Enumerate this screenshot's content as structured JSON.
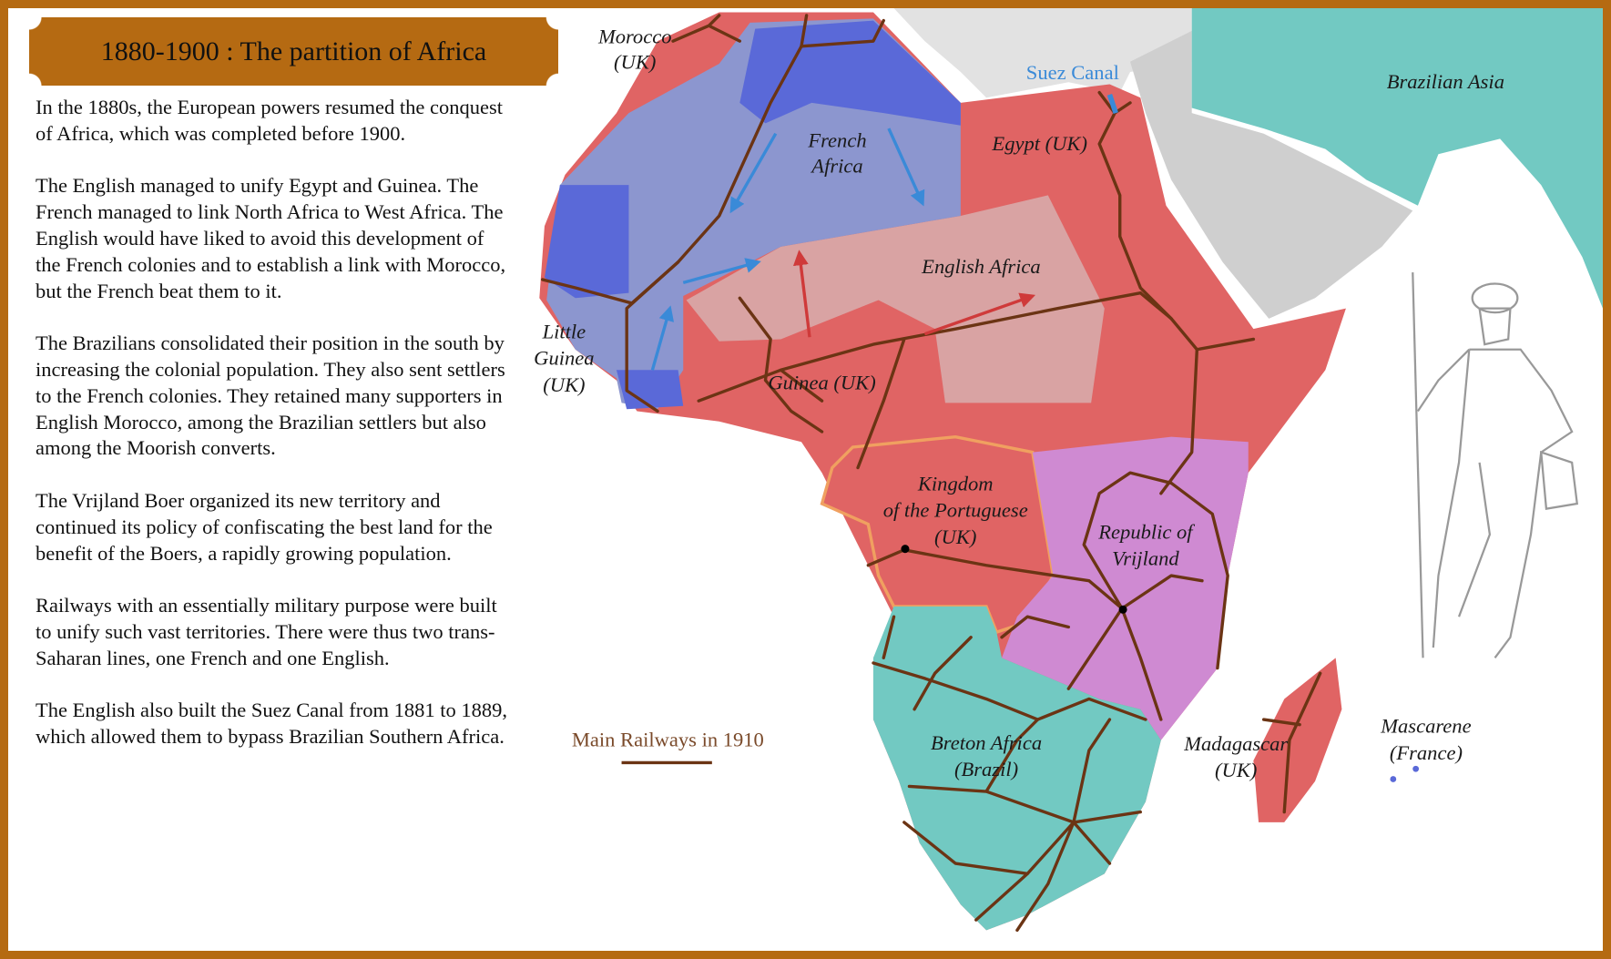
{
  "title": "1880-1900 : The partition of Africa",
  "paragraphs": [
    "In the 1880s, the European powers resumed the conquest of Africa, which was completed before 1900.",
    "The English managed to unify Egypt and Guinea. The French managed to link North Africa to West Africa. The English would have liked to avoid this development of the French colonies and to establish a link with Morocco, but the French beat them to it.",
    "The Brazilians consolidated their position in the south by increasing the colonial population. They also sent settlers to the French colonies. They retained many supporters in English Morocco, among the Brazilian settlers but also among the Moorish converts.",
    "The Vrijland Boer organized its new territory and continued its policy of confiscating the best land for the benefit of the Boers, a rapidly growing population.",
    "Railways with an essentially military purpose were built to unify such vast territories. There were thus two trans-Saharan lines, one French and one English.",
    "The English also built the Suez Canal from 1881 to 1889, which allowed them to bypass Brazilian Southern Africa."
  ],
  "map": {
    "labels": {
      "morocco": [
        "Morocco",
        "(UK)"
      ],
      "french_africa": [
        "French",
        "Africa"
      ],
      "egypt": [
        "Egypt (UK)"
      ],
      "english_africa": [
        "English Africa"
      ],
      "little_guinea": [
        "Little",
        "Guinea",
        "(UK)"
      ],
      "guinea": [
        "Guinea (UK)"
      ],
      "portuguese": [
        "Kingdom",
        "of the Portuguese",
        "(UK)"
      ],
      "vrijland": [
        "Republic of",
        "Vrijland"
      ],
      "breton_africa": [
        "Breton Africa",
        "(Brazil)"
      ],
      "madagascar": [
        "Madagascar",
        "(UK)"
      ],
      "mascarene": [
        "Mascarene",
        "(France)"
      ],
      "brazilian_asia": [
        "Brazilian Asia"
      ],
      "suez": [
        "Suez Canal"
      ]
    },
    "legend": {
      "railways": "Main Railways in 1910"
    },
    "colors": {
      "uk": "#e06464",
      "uk_light": "#d9a3a3",
      "france": "#8c96cf",
      "france_dark": "#5a69d8",
      "brazil": "#72c9c2",
      "vrijland": "#cf8ad2",
      "railway": "#6b3414",
      "suez": "#3a8ad8",
      "border": "#b56a12"
    }
  }
}
